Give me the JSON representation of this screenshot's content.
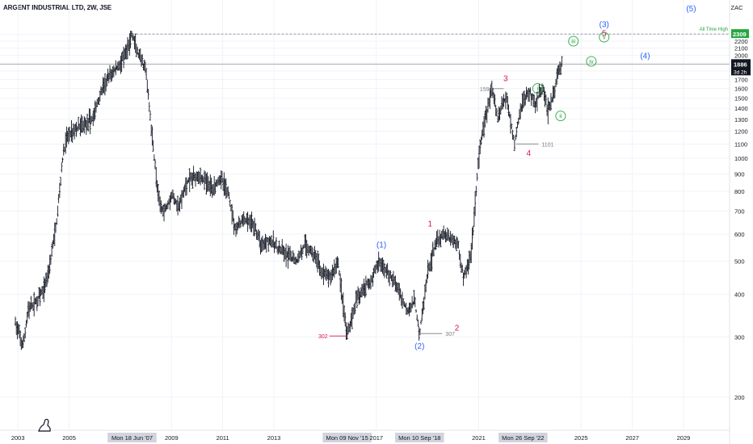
{
  "header": {
    "title": "ARGENT INDUSTRIAL LTD, 2W, JSE",
    "currency": "ZAC"
  },
  "chart_data": {
    "type": "bar",
    "style": "ohlc-bars",
    "scale": "log",
    "title": "ARGENT INDUSTRIAL LTD, 2W, JSE",
    "xlabel": "",
    "ylabel": "",
    "xlim": [
      2002.3,
      2030.8
    ],
    "ylim": [
      160,
      2750
    ],
    "x_ticks": [
      "2003",
      "2005",
      "Mon 18 Jun '07",
      "2009",
      "2011",
      "2013",
      "20",
      "Mon 09 Nov '15",
      "2017",
      "Mon 10 Sep '18",
      "2021",
      "Mon 26 Sep '22",
      "2025",
      "2027",
      "2029"
    ],
    "y_ticks": [
      "200",
      "300",
      "400",
      "500",
      "600",
      "700",
      "800",
      "900",
      "1000",
      "1100",
      "1200",
      "1300",
      "1400",
      "1500",
      "1600",
      "1700",
      "1800",
      "1900",
      "2000",
      "2100",
      "2200",
      "2300"
    ],
    "price_line": {
      "value": 1886,
      "label": "1886",
      "countdown": "3d 2h"
    },
    "all_time_high": {
      "value": 2309,
      "label": "2309",
      "text": "All Time High",
      "date": "Mon 18 Jun '07"
    },
    "series": [
      {
        "x": [
          2002.9,
          2003.2,
          2003.4,
          2003.7,
          2004.0,
          2004.2,
          2004.5,
          2004.75,
          2004.9,
          2005.1,
          2005.5,
          2005.9,
          2006.3,
          2006.6,
          2006.9,
          2007.2,
          2007.46,
          2007.7,
          2008.0,
          2008.2,
          2008.5,
          2008.7,
          2009.0,
          2009.3,
          2009.6,
          2010.0,
          2010.3,
          2010.6,
          2010.9,
          2011.2,
          2011.5,
          2011.8,
          2012.2,
          2012.5,
          2012.8,
          2013.2,
          2013.5,
          2013.9,
          2014.2,
          2014.6,
          2014.9,
          2015.2,
          2015.5,
          2015.86,
          2016.2,
          2016.5,
          2016.8,
          2017.1,
          2017.5,
          2017.8,
          2018.2,
          2018.5,
          2018.69,
          2019.0,
          2019.3,
          2019.6,
          2019.9,
          2020.2,
          2020.4,
          2020.7,
          2021.0,
          2021.2,
          2021.5,
          2021.75,
          2021.9,
          2022.1,
          2022.4,
          2022.6,
          2022.73,
          2023.0,
          2023.2,
          2023.5,
          2023.7,
          2023.95,
          2024.1,
          2024.25
        ],
        "values": [
          330,
          280,
          360,
          380,
          410,
          470,
          640,
          1000,
          1150,
          1200,
          1250,
          1300,
          1600,
          1750,
          1850,
          2000,
          2309,
          2000,
          1800,
          1250,
          750,
          700,
          780,
          720,
          850,
          900,
          860,
          820,
          880,
          800,
          620,
          660,
          640,
          560,
          580,
          540,
          520,
          500,
          560,
          520,
          460,
          450,
          500,
          302,
          380,
          420,
          440,
          500,
          460,
          420,
          360,
          380,
          307,
          460,
          560,
          600,
          580,
          560,
          450,
          520,
          1000,
          1250,
          1598,
          1300,
          1450,
          1500,
          1101,
          1350,
          1480,
          1560,
          1450,
          1600,
          1380,
          1550,
          1800,
          1886
        ]
      }
    ],
    "annotations": [
      {
        "text": "1598",
        "x": 2021.6,
        "y": 1598,
        "kind": "price-label"
      },
      {
        "text": "1101",
        "x": 2022.45,
        "y": 1101,
        "kind": "price-label"
      },
      {
        "text": "302",
        "x": 2015.86,
        "y": 302,
        "kind": "price-label"
      },
      {
        "text": "307",
        "x": 2018.69,
        "y": 307,
        "kind": "price-label"
      }
    ],
    "wave_labels": [
      {
        "text": "(1)",
        "x": 2017.2,
        "y": 560,
        "color": "#2962ff",
        "style": "plain"
      },
      {
        "text": "(2)",
        "x": 2018.69,
        "y": 283,
        "color": "#2962ff",
        "style": "plain"
      },
      {
        "text": "(3)",
        "x": 2025.9,
        "y": 2470,
        "color": "#2962ff",
        "style": "plain"
      },
      {
        "text": "(4)",
        "x": 2027.5,
        "y": 2000,
        "color": "#2962ff",
        "style": "plain"
      },
      {
        "text": "(5)",
        "x": 2029.3,
        "y": 2750,
        "color": "#2962ff",
        "style": "plain"
      },
      {
        "text": "1",
        "x": 2019.1,
        "y": 645,
        "color": "#e0114d",
        "style": "plain"
      },
      {
        "text": "2",
        "x": 2020.15,
        "y": 320,
        "color": "#e0114d",
        "style": "plain"
      },
      {
        "text": "3",
        "x": 2022.05,
        "y": 1720,
        "color": "#e0114d",
        "style": "plain"
      },
      {
        "text": "4",
        "x": 2022.95,
        "y": 1040,
        "color": "#e0114d",
        "style": "plain"
      },
      {
        "text": "5",
        "x": 2025.9,
        "y": 2330,
        "color": "#e0114d",
        "style": "plain"
      },
      {
        "text": "i",
        "x": 2023.3,
        "y": 1600,
        "color": "#26a640",
        "style": "circled"
      },
      {
        "text": "ii",
        "x": 2024.2,
        "y": 1330,
        "color": "#26a640",
        "style": "circled"
      },
      {
        "text": "iii",
        "x": 2024.7,
        "y": 2200,
        "color": "#26a640",
        "style": "circled"
      },
      {
        "text": "iv",
        "x": 2025.4,
        "y": 1920,
        "color": "#26a640",
        "style": "circled"
      },
      {
        "text": "v",
        "x": 2025.9,
        "y": 2260,
        "color": "#26a640",
        "style": "circled"
      }
    ],
    "grid": true,
    "legend": "none"
  },
  "colors": {
    "bars": "#131722",
    "grid": "#f0f3fa",
    "blue_wave": "#2962ff",
    "red_wave": "#e0114d",
    "green_wave": "#26a640",
    "ath_badge": "#26a640",
    "price_badge": "#131722",
    "axis_box": "#d1d4dc"
  },
  "icons": {
    "logo": "tradingview-logo-icon"
  }
}
